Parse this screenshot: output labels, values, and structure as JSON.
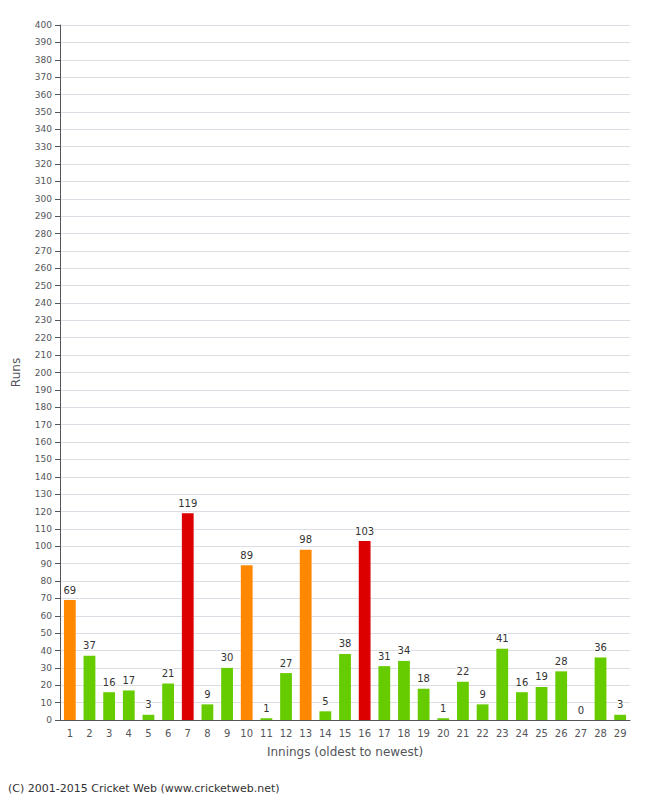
{
  "chart_data": {
    "type": "bar",
    "xlabel": "Innings (oldest to newest)",
    "ylabel": "Runs",
    "categories": [
      "1",
      "2",
      "3",
      "4",
      "5",
      "6",
      "7",
      "8",
      "9",
      "10",
      "11",
      "12",
      "13",
      "14",
      "15",
      "16",
      "17",
      "18",
      "19",
      "20",
      "21",
      "22",
      "23",
      "24",
      "25",
      "26",
      "27",
      "28",
      "29"
    ],
    "values": [
      69,
      37,
      16,
      17,
      3,
      21,
      119,
      9,
      30,
      89,
      1,
      27,
      98,
      5,
      38,
      103,
      31,
      34,
      18,
      1,
      22,
      9,
      41,
      16,
      19,
      28,
      0,
      36,
      3
    ],
    "colors": [
      "#ff8800",
      "#66cc00",
      "#66cc00",
      "#66cc00",
      "#66cc00",
      "#66cc00",
      "#dd0000",
      "#66cc00",
      "#66cc00",
      "#ff8800",
      "#66cc00",
      "#66cc00",
      "#ff8800",
      "#66cc00",
      "#66cc00",
      "#dd0000",
      "#66cc00",
      "#66cc00",
      "#66cc00",
      "#66cc00",
      "#66cc00",
      "#66cc00",
      "#66cc00",
      "#66cc00",
      "#66cc00",
      "#66cc00",
      "#66cc00",
      "#66cc00",
      "#66cc00"
    ],
    "ylim": [
      0,
      400
    ],
    "yticks": [
      0,
      10,
      20,
      30,
      40,
      50,
      60,
      70,
      80,
      90,
      100,
      110,
      120,
      130,
      140,
      150,
      160,
      170,
      180,
      190,
      200,
      210,
      220,
      230,
      240,
      250,
      260,
      270,
      280,
      290,
      300,
      310,
      320,
      330,
      340,
      350,
      360,
      370,
      380,
      390,
      400
    ],
    "grid": true,
    "data_labels": true,
    "annotations": [
      "(C) 2001-2015 Cricket Web (www.cricketweb.net)"
    ]
  }
}
